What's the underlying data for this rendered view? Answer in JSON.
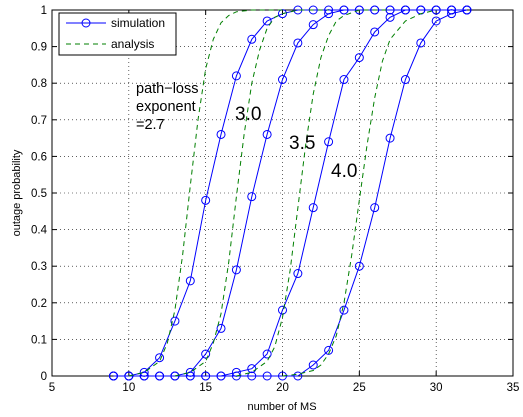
{
  "chart_data": {
    "type": "line",
    "xlabel": "number of MS",
    "ylabel": "outage probability",
    "xlim": [
      5,
      35
    ],
    "ylim": [
      0,
      1
    ],
    "xticks": [
      "5",
      "10",
      "15",
      "20",
      "25",
      "30",
      "35"
    ],
    "yticks": [
      "0",
      "0.1",
      "0.2",
      "0.3",
      "0.4",
      "0.5",
      "0.6",
      "0.7",
      "0.8",
      "0.9",
      "1"
    ],
    "grid": true,
    "legend": {
      "position": "top-left",
      "entries": [
        "simulation",
        "analysis"
      ]
    },
    "colors": {
      "simulation": "#0000ff",
      "analysis": "#007f00"
    },
    "annotations": [
      {
        "lines": [
          "path−loss",
          "exponent",
          "=2.7"
        ]
      },
      {
        "lines": [
          "3.0"
        ]
      },
      {
        "lines": [
          "3.5"
        ]
      },
      {
        "lines": [
          "4.0"
        ]
      }
    ],
    "series": [
      {
        "name": "simulation",
        "curve": "=2.7",
        "x": [
          9,
          10,
          11,
          12,
          13,
          14,
          15,
          16,
          17,
          18,
          19,
          20,
          21,
          22,
          23,
          24,
          25,
          26,
          27,
          28,
          29,
          30,
          31,
          32
        ],
        "y": [
          0.0,
          0.0,
          0.01,
          0.05,
          0.15,
          0.26,
          0.48,
          0.66,
          0.82,
          0.92,
          0.97,
          0.99,
          1.0,
          1.0,
          1.0,
          1.0,
          1.0,
          1.0,
          1.0,
          1.0,
          1.0,
          1.0,
          1.0,
          1.0
        ]
      },
      {
        "name": "simulation",
        "curve": "3.0",
        "x": [
          9,
          10,
          11,
          12,
          13,
          14,
          15,
          16,
          17,
          18,
          19,
          20,
          21,
          22,
          23,
          24,
          25,
          26,
          27,
          28,
          29,
          30,
          31,
          32
        ],
        "y": [
          0.0,
          0.0,
          0.0,
          0.0,
          0.0,
          0.01,
          0.06,
          0.13,
          0.29,
          0.49,
          0.66,
          0.81,
          0.91,
          0.96,
          0.99,
          1.0,
          1.0,
          1.0,
          1.0,
          1.0,
          1.0,
          1.0,
          1.0,
          1.0
        ]
      },
      {
        "name": "simulation",
        "curve": "3.5",
        "x": [
          9,
          10,
          11,
          12,
          13,
          14,
          15,
          16,
          17,
          18,
          19,
          20,
          21,
          22,
          23,
          24,
          25,
          26,
          27,
          28,
          29,
          30,
          31,
          32
        ],
        "y": [
          0.0,
          0.0,
          0.0,
          0.0,
          0.0,
          0.0,
          0.0,
          0.0,
          0.01,
          0.02,
          0.06,
          0.18,
          0.28,
          0.46,
          0.64,
          0.81,
          0.87,
          0.94,
          0.98,
          1.0,
          1.0,
          1.0,
          1.0,
          1.0
        ]
      },
      {
        "name": "simulation",
        "curve": "4.0",
        "x": [
          9,
          10,
          11,
          12,
          13,
          14,
          15,
          16,
          17,
          18,
          19,
          20,
          21,
          22,
          23,
          24,
          25,
          26,
          27,
          28,
          29,
          30,
          31,
          32
        ],
        "y": [
          0.0,
          0.0,
          0.0,
          0.0,
          0.0,
          0.0,
          0.0,
          0.0,
          0.0,
          0.0,
          0.0,
          0.0,
          0.0,
          0.03,
          0.07,
          0.18,
          0.3,
          0.46,
          0.65,
          0.81,
          0.91,
          0.97,
          0.99,
          1.0
        ]
      },
      {
        "name": "analysis",
        "curve": "=2.7",
        "x": [
          10,
          11,
          12,
          12.5,
          13,
          13.5,
          14,
          14.5,
          15,
          15.5,
          16,
          16.5,
          17,
          18,
          19,
          20
        ],
        "y": [
          0.0,
          0.01,
          0.04,
          0.09,
          0.18,
          0.33,
          0.52,
          0.7,
          0.84,
          0.92,
          0.965,
          0.985,
          0.995,
          1.0,
          1.0,
          1.0
        ]
      },
      {
        "name": "analysis",
        "curve": "3.0",
        "x": [
          13,
          14,
          15,
          15.5,
          16,
          16.5,
          17,
          17.5,
          18,
          18.5,
          19,
          19.5,
          20,
          21,
          22,
          23
        ],
        "y": [
          0.0,
          0.01,
          0.04,
          0.09,
          0.17,
          0.31,
          0.49,
          0.66,
          0.8,
          0.89,
          0.95,
          0.98,
          0.99,
          1.0,
          1.0,
          1.0
        ]
      },
      {
        "name": "analysis",
        "curve": "3.5",
        "x": [
          17,
          18,
          19,
          19.5,
          20,
          20.5,
          21,
          21.5,
          22,
          22.5,
          23,
          23.5,
          24,
          25,
          26,
          27
        ],
        "y": [
          0.0,
          0.01,
          0.04,
          0.08,
          0.16,
          0.29,
          0.46,
          0.63,
          0.77,
          0.87,
          0.93,
          0.97,
          0.985,
          1.0,
          1.0,
          1.0
        ]
      },
      {
        "name": "analysis",
        "curve": "4.0",
        "x": [
          20,
          21,
          22,
          22.5,
          23,
          23.5,
          24,
          24.5,
          25,
          25.5,
          26,
          26.5,
          27,
          28,
          29,
          30
        ],
        "y": [
          0.0,
          0.005,
          0.015,
          0.03,
          0.06,
          0.11,
          0.2,
          0.33,
          0.48,
          0.63,
          0.76,
          0.86,
          0.92,
          0.97,
          0.99,
          1.0
        ]
      }
    ]
  }
}
